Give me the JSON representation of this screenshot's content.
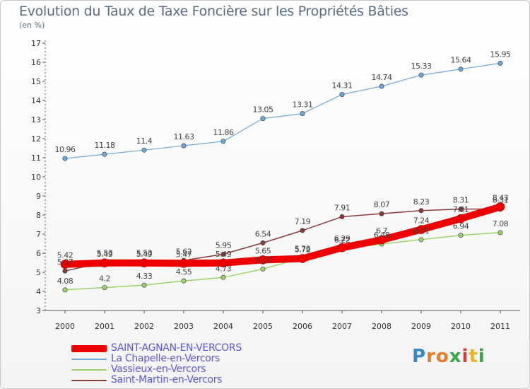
{
  "title": "Evolution du Taux de Taxe Foncière sur les Propriétés Bâties",
  "unit_label": "(en %)",
  "logo": {
    "text": "Proxiti",
    "letters": [
      {
        "char": "P",
        "color": "#3a86c8"
      },
      {
        "char": "r",
        "color": "#e87d2a"
      },
      {
        "char": "o",
        "color": "#e87d2a"
      },
      {
        "char": "x",
        "color": "#3aa64a"
      },
      {
        "char": "i",
        "color": "#d93a3a"
      },
      {
        "char": "t",
        "color": "#e8b52a"
      },
      {
        "char": "i",
        "color": "#3aa64a"
      }
    ]
  },
  "chart_data": {
    "type": "line",
    "x": [
      "2000",
      "2001",
      "2002",
      "2003",
      "2004",
      "2005",
      "2006",
      "2007",
      "2008",
      "2009",
      "2010",
      "2011"
    ],
    "ylim": [
      3,
      17
    ],
    "yticks": [
      "3",
      "4",
      "5",
      "6",
      "7",
      "8",
      "9",
      "10",
      "11",
      "12",
      "13",
      "14",
      "15",
      "16",
      "17"
    ],
    "grid": false,
    "legend_position": "bottom-left",
    "series": [
      {
        "name": "SAINT-AGNAN-EN-VERCORS",
        "color": "#ee0000",
        "values": [
          5.42,
          5.49,
          5.49,
          5.47,
          5.49,
          5.65,
          5.72,
          6.29,
          6.7,
          7.24,
          7.81,
          8.43
        ],
        "labels": [
          "5.42",
          "5.49",
          "5.49",
          "5.47",
          "5.49",
          "5.65",
          "5.72",
          "6.29",
          "6.7",
          "7.24",
          "7.81",
          "8.43"
        ]
      },
      {
        "name": "La Chapelle-en-Vercors",
        "color": "#6fa8dc",
        "values": [
          10.96,
          11.18,
          11.4,
          11.63,
          11.86,
          13.05,
          13.31,
          14.31,
          14.74,
          15.33,
          15.64,
          15.95
        ],
        "labels": [
          "10.96",
          "11.18",
          "11.4",
          "11.63",
          "11.86",
          "13.05",
          "13.31",
          "14.31",
          "14.74",
          "15.33",
          "15.64",
          "15.95"
        ]
      },
      {
        "name": "Vassieux-en-Vercors",
        "color": "#9ad46a",
        "values": [
          4.08,
          4.2,
          4.33,
          4.55,
          4.73,
          5.17,
          5.76,
          6.22,
          6.48,
          6.71,
          6.94,
          7.08
        ],
        "labels": [
          "4.08",
          "4.2",
          "4.33",
          "4.55",
          "4.73",
          "5.17",
          "5.76",
          "6.22",
          "6.48",
          "6.71",
          "6.94",
          "7.08"
        ]
      },
      {
        "name": "Saint-Martin-en-Vercors",
        "color": "#8b3a3a",
        "values": [
          5.07,
          5.53,
          5.53,
          5.62,
          5.95,
          6.54,
          7.19,
          7.91,
          8.07,
          8.23,
          8.31,
          8.31
        ],
        "labels": [
          "5.07",
          "5.53",
          "5.53",
          "5.62",
          "5.95",
          "6.54",
          "7.19",
          "7.91",
          "8.07",
          "8.23",
          "8.31",
          "8.31"
        ]
      }
    ]
  }
}
